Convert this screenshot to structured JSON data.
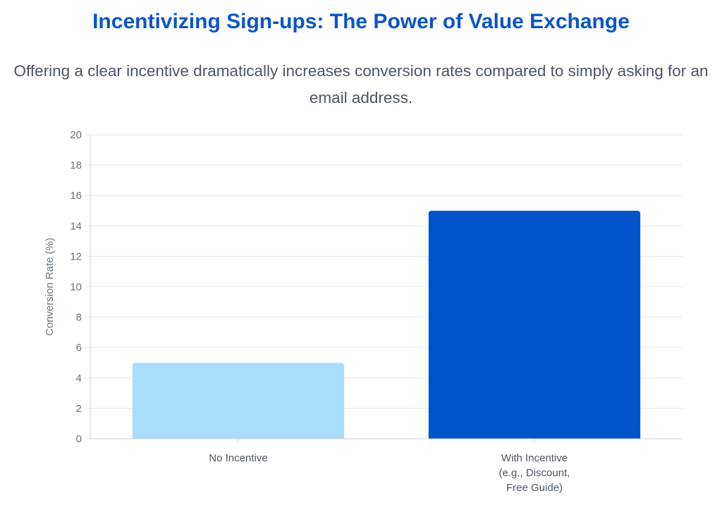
{
  "title": "Incentivizing Sign-ups: The Power of Value Exchange",
  "subtitle": "Offering a clear incentive dramatically increases conversion rates compared to simply asking for an email address.",
  "chart_data": {
    "type": "bar",
    "categories": [
      [
        "No Incentive"
      ],
      [
        "With Incentive",
        "(e.g., Discount,",
        "Free Guide)"
      ]
    ],
    "values": [
      5,
      15
    ],
    "colors": [
      "#a8ddfc",
      "#0153cc"
    ],
    "ylabel": "Conversion Rate (%)",
    "xlabel": "",
    "ylim": [
      0,
      20
    ],
    "yticks": [
      0,
      2,
      4,
      6,
      8,
      10,
      12,
      14,
      16,
      18,
      20
    ],
    "grid": true
  }
}
